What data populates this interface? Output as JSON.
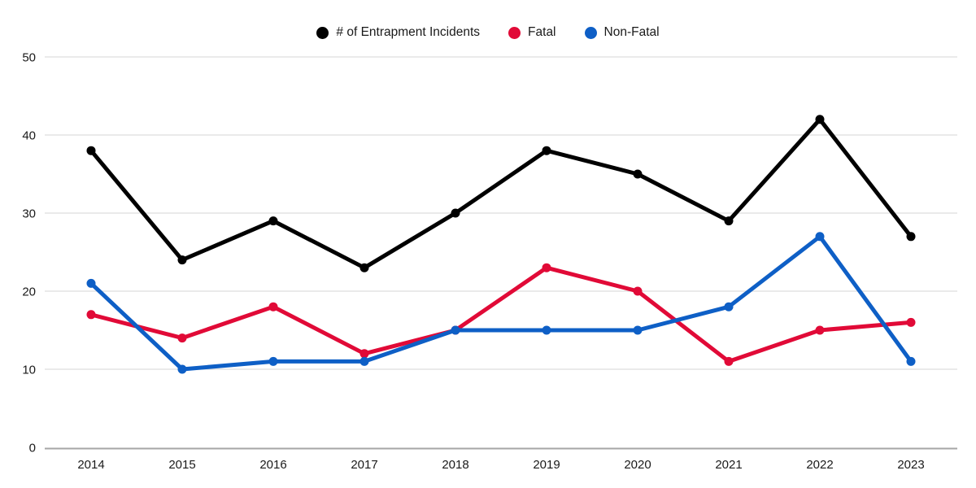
{
  "chart": {
    "background": "#ffffff",
    "text_color": "#1a1a1a",
    "grid_color": "#dedede",
    "axis_line_color": "#a6a6a6"
  },
  "chart_data": {
    "type": "line",
    "title": "",
    "categories": [
      "2014",
      "2015",
      "2016",
      "2017",
      "2018",
      "2019",
      "2020",
      "2021",
      "2022",
      "2023"
    ],
    "series": [
      {
        "name": "# of Entrapment Incidents",
        "color": "#000000",
        "values": [
          38,
          24,
          29,
          23,
          30,
          38,
          35,
          29,
          42,
          27
        ]
      },
      {
        "name": "Fatal",
        "color": "#e10a37",
        "values": [
          17,
          14,
          18,
          12,
          15,
          23,
          20,
          11,
          15,
          16
        ]
      },
      {
        "name": "Non-Fatal",
        "color": "#0e5fc6",
        "values": [
          21,
          10,
          11,
          11,
          15,
          15,
          15,
          18,
          27,
          11
        ]
      }
    ],
    "xlabel": "",
    "ylabel": "",
    "ylim": [
      0,
      50
    ],
    "yticks": [
      0,
      10,
      20,
      30,
      40,
      50
    ],
    "grid": true,
    "legend_position": "top"
  }
}
